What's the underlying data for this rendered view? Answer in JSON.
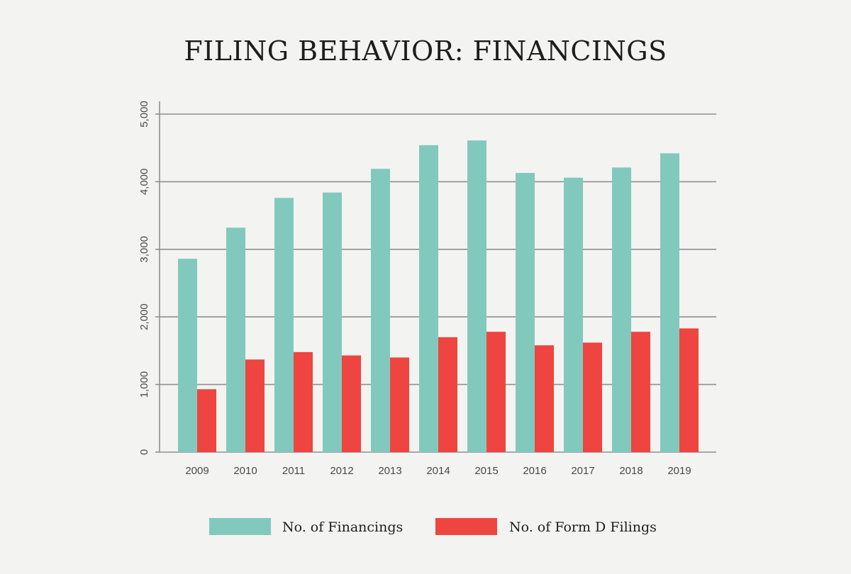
{
  "chart_data": {
    "type": "bar",
    "title": "FILING BEHAVIOR: FINANCINGS",
    "xlabel": "",
    "ylabel": "",
    "categories": [
      "2009",
      "2010",
      "2011",
      "2012",
      "2013",
      "2014",
      "2015",
      "2016",
      "2017",
      "2018",
      "2019"
    ],
    "series": [
      {
        "name": "No. of Financings",
        "color": "#82c9bd",
        "values": [
          2860,
          3320,
          3760,
          3840,
          4190,
          4540,
          4610,
          4130,
          4060,
          4210,
          4420
        ]
      },
      {
        "name": "No. of Form D Filings",
        "color": "#ee4540",
        "values": [
          930,
          1370,
          1480,
          1430,
          1400,
          1700,
          1780,
          1580,
          1620,
          1780,
          1830
        ]
      }
    ],
    "ylim": [
      0,
      5000
    ],
    "yticks": [
      0,
      1000,
      2000,
      3000,
      4000,
      5000
    ],
    "ytick_labels": [
      "0",
      "1,000",
      "2,000",
      "3,000",
      "4,000",
      "5,000"
    ],
    "grid": true,
    "legend_position": "bottom"
  }
}
